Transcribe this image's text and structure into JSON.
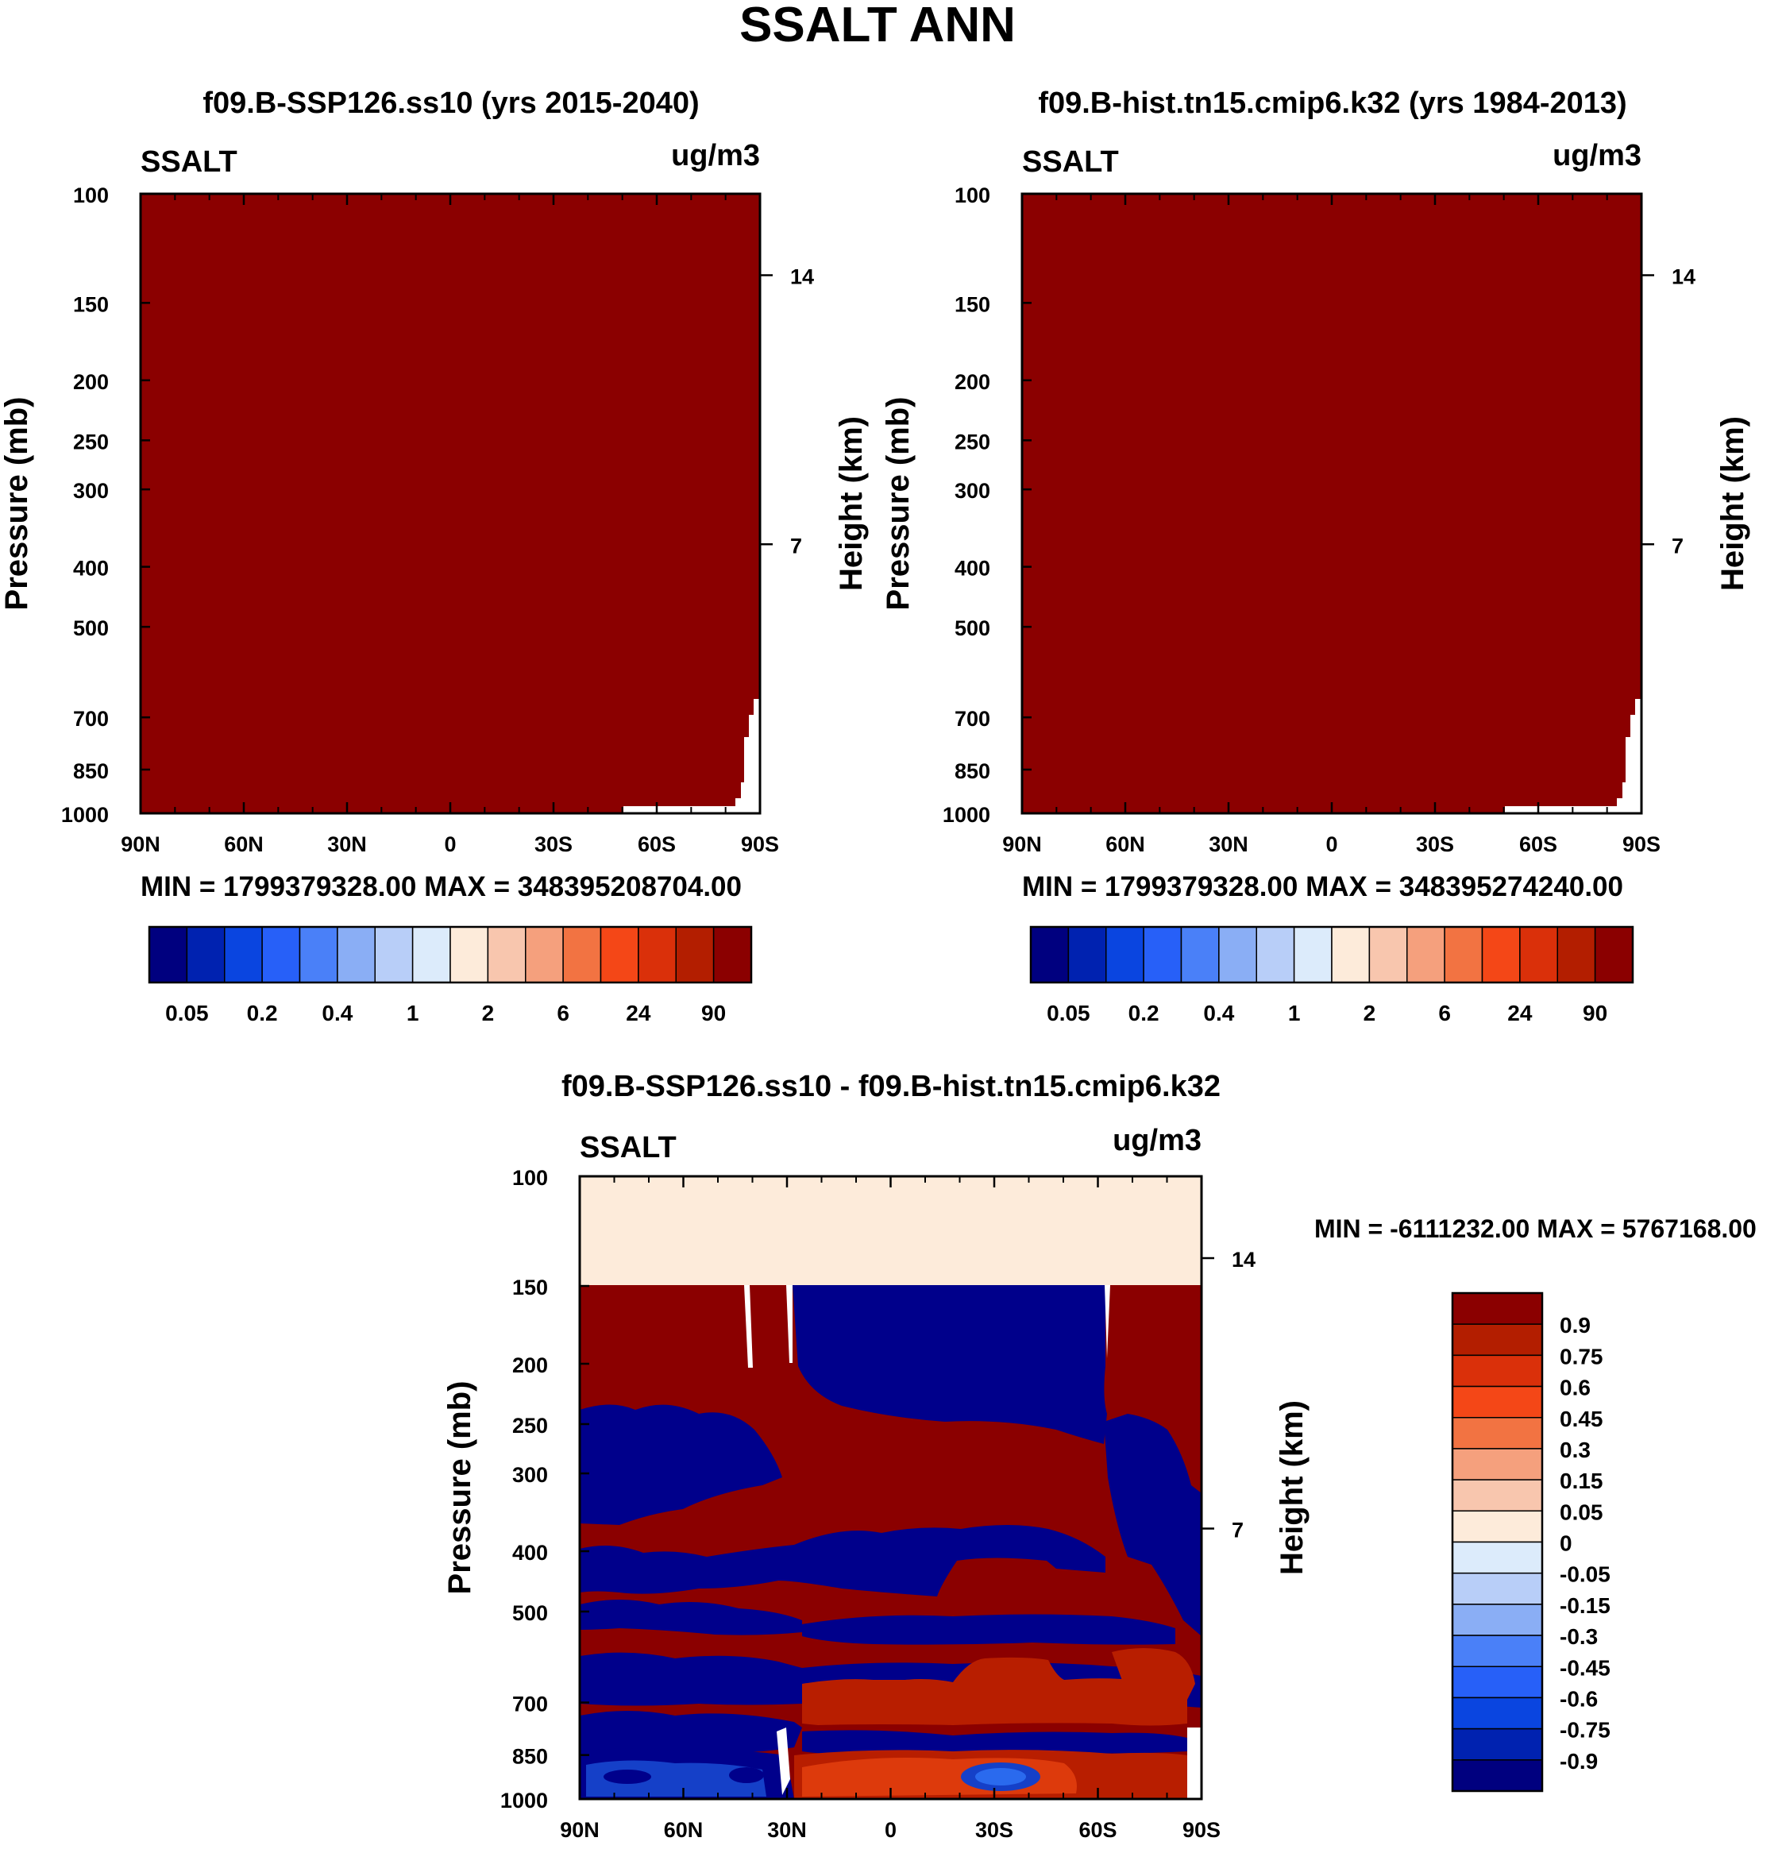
{
  "title": "SSALT ANN",
  "colors": {
    "dark_red": "#8B0000",
    "cream": "#FDEBDA",
    "navy": "#00008B",
    "blue_mid": "#1540C8",
    "blue_light": "#2A6AEE",
    "red_orange": "#B81E00",
    "orange_red": "#DD3A0C"
  },
  "absolute_scale": {
    "colors": [
      "#00007F",
      "#0022B0",
      "#0A45E0",
      "#2760F8",
      "#4A80F8",
      "#8AAEF5",
      "#B8CEF8",
      "#DCEBFB",
      "#FDEBDA",
      "#F8C6AE",
      "#F5A07D",
      "#F27342",
      "#F44717",
      "#DA300A",
      "#B31E00",
      "#8B0000"
    ],
    "labels": [
      "0.05",
      "0.2",
      "0.4",
      "1",
      "2",
      "6",
      "24",
      "90"
    ]
  },
  "diff_scale": {
    "colors": [
      "#8B0000",
      "#B31E00",
      "#DA300A",
      "#F44717",
      "#F27342",
      "#F5A07D",
      "#F8C6AE",
      "#FDEBDA",
      "#DCEBFB",
      "#B8CEF8",
      "#8AAEF5",
      "#4A80F8",
      "#2760F8",
      "#0A45E0",
      "#0022B0",
      "#00007F"
    ],
    "labels": [
      "0.9",
      "0.75",
      "0.6",
      "0.45",
      "0.3",
      "0.15",
      "0.05",
      "0",
      "-0.05",
      "-0.15",
      "-0.3",
      "-0.45",
      "-0.6",
      "-0.75",
      "-0.9"
    ]
  },
  "chart_data": [
    {
      "type": "heatmap",
      "title": "f09.B-SSP126.ss10 (yrs 2015-2040)",
      "variable": "SSALT",
      "units": "ug/m3",
      "ylabel": "Pressure (mb)",
      "ylabel_right": "Height (km)",
      "x_ticks": [
        "90N",
        "60N",
        "30N",
        "0",
        "30S",
        "60S",
        "90S"
      ],
      "y_ticks": [
        "100",
        "150",
        "200",
        "250",
        "300",
        "400",
        "500",
        "700",
        "850",
        "1000"
      ],
      "y_ticks_right": [
        "14",
        "7"
      ],
      "ylim": [
        1000,
        100
      ],
      "stats": "MIN = 1799379328.00   MAX = 348395208704.00"
    },
    {
      "type": "heatmap",
      "title": "f09.B-hist.tn15.cmip6.k32 (yrs 1984-2013)",
      "variable": "SSALT",
      "units": "ug/m3",
      "ylabel": "Pressure (mb)",
      "ylabel_right": "Height (km)",
      "x_ticks": [
        "90N",
        "60N",
        "30N",
        "0",
        "30S",
        "60S",
        "90S"
      ],
      "y_ticks": [
        "100",
        "150",
        "200",
        "250",
        "300",
        "400",
        "500",
        "700",
        "850",
        "1000"
      ],
      "y_ticks_right": [
        "14",
        "7"
      ],
      "ylim": [
        1000,
        100
      ],
      "stats": "MIN = 1799379328.00   MAX = 348395274240.00"
    },
    {
      "type": "heatmap",
      "title": "f09.B-SSP126.ss10 - f09.B-hist.tn15.cmip6.k32",
      "variable": "SSALT",
      "units": "ug/m3",
      "ylabel": "Pressure (mb)",
      "ylabel_right": "Height (km)",
      "x_ticks": [
        "90N",
        "60N",
        "30N",
        "0",
        "30S",
        "60S",
        "90S"
      ],
      "y_ticks": [
        "100",
        "150",
        "200",
        "250",
        "300",
        "400",
        "500",
        "700",
        "850",
        "1000"
      ],
      "y_ticks_right": [
        "14",
        "7"
      ],
      "ylim": [
        1000,
        100
      ],
      "stats": "MIN = -6111232.00  MAX = 5767168.00"
    }
  ]
}
